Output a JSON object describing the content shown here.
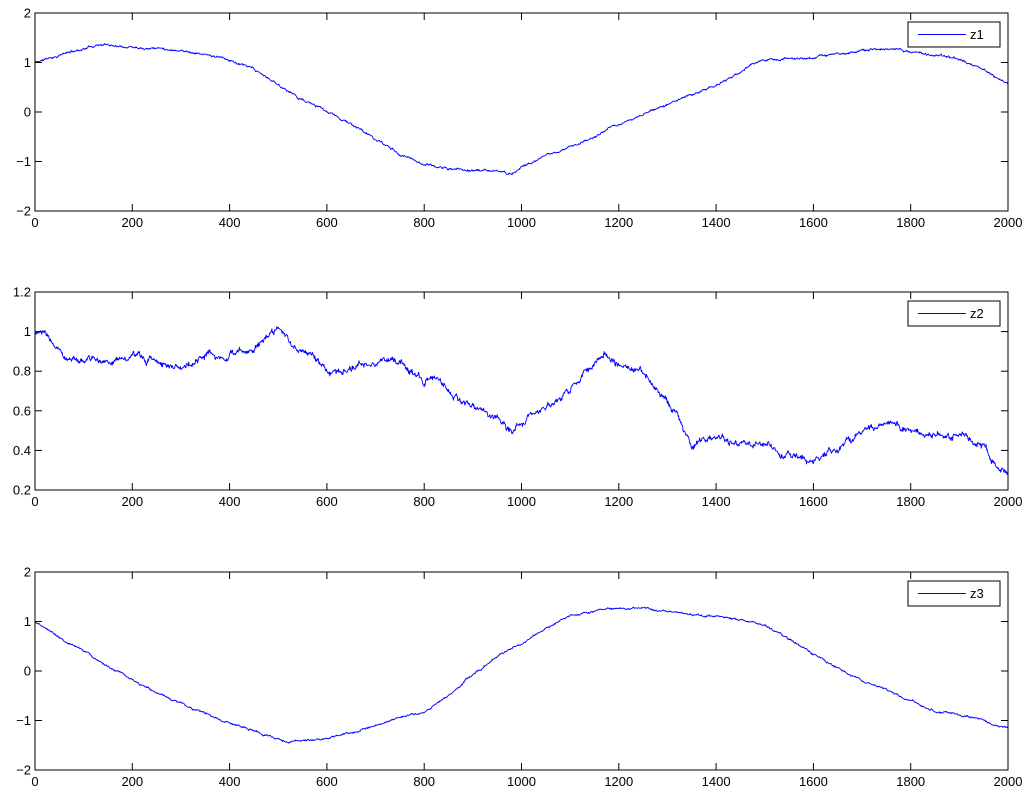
{
  "chart_data": [
    {
      "type": "line",
      "xlim": [
        0,
        2000
      ],
      "ylim": [
        -2,
        2
      ],
      "xticks": [
        0,
        200,
        400,
        600,
        800,
        1000,
        1200,
        1400,
        1600,
        1800,
        2000
      ],
      "yticks": [
        -2,
        -1,
        0,
        1,
        2
      ],
      "xtick_labels": [
        "0",
        "200",
        "400",
        "600",
        "800",
        "1000",
        "1200",
        "1400",
        "1600",
        "1800",
        "2000"
      ],
      "ytick_labels": [
        "−2",
        "−1",
        "0",
        "1",
        "2"
      ],
      "grid": false,
      "legend_position": "top-right",
      "color": "#0000ff",
      "noise": 0.025,
      "seed": 11,
      "series": [
        {
          "name": "z1",
          "x": [
            0,
            50,
            100,
            130,
            160,
            200,
            250,
            300,
            330,
            400,
            450,
            500,
            550,
            600,
            650,
            700,
            750,
            800,
            850,
            900,
            950,
            980,
            1000,
            1050,
            1100,
            1150,
            1200,
            1250,
            1300,
            1350,
            1400,
            1450,
            1480,
            1500,
            1550,
            1600,
            1650,
            1700,
            1750,
            1800,
            1850,
            1900,
            1950,
            2000
          ],
          "y": [
            1.0,
            1.15,
            1.28,
            1.37,
            1.35,
            1.33,
            1.3,
            1.25,
            1.2,
            1.05,
            0.85,
            0.55,
            0.25,
            0.0,
            -0.25,
            -0.55,
            -0.85,
            -1.05,
            -1.15,
            -1.18,
            -1.2,
            -1.25,
            -1.1,
            -0.9,
            -0.7,
            -0.5,
            -0.25,
            -0.05,
            0.15,
            0.35,
            0.55,
            0.8,
            1.02,
            1.05,
            1.05,
            1.1,
            1.18,
            1.25,
            1.28,
            1.22,
            1.15,
            1.05,
            0.85,
            0.55
          ]
        }
      ]
    },
    {
      "type": "line",
      "xlim": [
        0,
        2000
      ],
      "ylim": [
        0.2,
        1.2
      ],
      "xticks": [
        0,
        200,
        400,
        600,
        800,
        1000,
        1200,
        1400,
        1600,
        1800,
        2000
      ],
      "yticks": [
        0.2,
        0.4,
        0.6,
        0.8,
        1,
        1.2
      ],
      "xtick_labels": [
        "0",
        "200",
        "400",
        "600",
        "800",
        "1000",
        "1200",
        "1400",
        "1600",
        "1800",
        "2000"
      ],
      "ytick_labels": [
        "0.2",
        "0.4",
        "0.6",
        "0.8",
        "1",
        "1.2"
      ],
      "grid": false,
      "legend_position": "top-right",
      "color": "#0000ff",
      "noise": 0.018,
      "seed": 23,
      "series": [
        {
          "name": "z2",
          "x": [
            0,
            20,
            50,
            80,
            100,
            150,
            200,
            250,
            300,
            350,
            400,
            450,
            480,
            500,
            530,
            560,
            600,
            650,
            700,
            750,
            800,
            820,
            850,
            900,
            950,
            980,
            1000,
            1050,
            1100,
            1150,
            1170,
            1200,
            1250,
            1300,
            1320,
            1350,
            1400,
            1450,
            1500,
            1550,
            1600,
            1650,
            1700,
            1750,
            1800,
            1850,
            1900,
            1950,
            1980,
            2000
          ],
          "y": [
            1.0,
            0.98,
            0.9,
            0.86,
            0.85,
            0.86,
            0.87,
            0.85,
            0.82,
            0.88,
            0.87,
            0.92,
            0.99,
            1.0,
            0.93,
            0.9,
            0.8,
            0.82,
            0.86,
            0.84,
            0.75,
            0.8,
            0.7,
            0.62,
            0.57,
            0.5,
            0.55,
            0.62,
            0.7,
            0.85,
            0.9,
            0.82,
            0.8,
            0.65,
            0.58,
            0.42,
            0.46,
            0.44,
            0.42,
            0.38,
            0.35,
            0.4,
            0.5,
            0.53,
            0.5,
            0.46,
            0.48,
            0.42,
            0.3,
            0.26
          ]
        }
      ]
    },
    {
      "type": "line",
      "xlim": [
        0,
        2000
      ],
      "ylim": [
        -2,
        2
      ],
      "xticks": [
        0,
        200,
        400,
        600,
        800,
        1000,
        1200,
        1400,
        1600,
        1800,
        2000
      ],
      "yticks": [
        -2,
        -1,
        0,
        1,
        2
      ],
      "xtick_labels": [
        "0",
        "200",
        "400",
        "600",
        "800",
        "1000",
        "1200",
        "1400",
        "1600",
        "1800",
        "2000"
      ],
      "ytick_labels": [
        "−2",
        "−1",
        "0",
        "1",
        "2"
      ],
      "grid": false,
      "legend_position": "top-right",
      "color": "#0000ff",
      "noise": 0.022,
      "seed": 37,
      "series": [
        {
          "name": "z3",
          "x": [
            0,
            50,
            100,
            150,
            200,
            250,
            300,
            350,
            400,
            450,
            500,
            520,
            550,
            570,
            600,
            650,
            700,
            750,
            800,
            850,
            900,
            950,
            1000,
            1050,
            1100,
            1150,
            1200,
            1250,
            1300,
            1350,
            1400,
            1450,
            1500,
            1550,
            1600,
            1650,
            1700,
            1750,
            1800,
            1850,
            1900,
            1950,
            1980,
            2000
          ],
          "y": [
            1.0,
            0.7,
            0.4,
            0.1,
            -0.2,
            -0.45,
            -0.65,
            -0.85,
            -1.05,
            -1.2,
            -1.38,
            -1.45,
            -1.4,
            -1.42,
            -1.35,
            -1.25,
            -1.1,
            -0.95,
            -0.8,
            -0.5,
            -0.05,
            0.3,
            0.55,
            0.85,
            1.15,
            1.22,
            1.27,
            1.25,
            1.2,
            1.15,
            1.1,
            1.05,
            0.9,
            0.65,
            0.35,
            0.05,
            -0.2,
            -0.4,
            -0.6,
            -0.8,
            -0.88,
            -1.0,
            -1.12,
            -1.15
          ]
        }
      ]
    }
  ]
}
